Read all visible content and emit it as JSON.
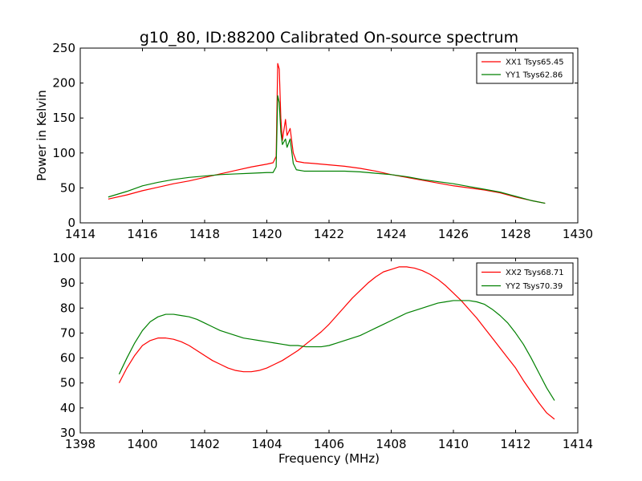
{
  "figure": {
    "title": "g10_80, ID:88200 Calibrated On-source spectrum"
  },
  "chart_data": [
    {
      "type": "line",
      "title": "g10_80, ID:88200 Calibrated On-source spectrum",
      "xlabel": "",
      "ylabel": "Power in Kelvin",
      "xlim": [
        1414,
        1430
      ],
      "ylim": [
        0,
        250
      ],
      "xticks": [
        1414,
        1416,
        1418,
        1420,
        1422,
        1424,
        1426,
        1428,
        1430
      ],
      "yticks": [
        0,
        50,
        100,
        150,
        200,
        250
      ],
      "grid": false,
      "legend_position": "top-right",
      "series": [
        {
          "name": "XX1 Tsys65.45",
          "color": "#ff0000",
          "points": [
            [
              1414.9,
              34
            ],
            [
              1415.5,
              40
            ],
            [
              1416,
              46
            ],
            [
              1416.5,
              51
            ],
            [
              1417,
              56
            ],
            [
              1417.5,
              60
            ],
            [
              1418,
              65
            ],
            [
              1418.5,
              70
            ],
            [
              1419,
              75
            ],
            [
              1419.5,
              80
            ],
            [
              1420,
              84
            ],
            [
              1420.2,
              86
            ],
            [
              1420.3,
              95
            ],
            [
              1420.35,
              228
            ],
            [
              1420.4,
              220
            ],
            [
              1420.45,
              150
            ],
            [
              1420.5,
              118
            ],
            [
              1420.6,
              148
            ],
            [
              1420.65,
              125
            ],
            [
              1420.75,
              135
            ],
            [
              1420.85,
              100
            ],
            [
              1420.95,
              88
            ],
            [
              1421.2,
              86
            ],
            [
              1421.5,
              85
            ],
            [
              1422,
              83
            ],
            [
              1422.5,
              81
            ],
            [
              1423,
              78
            ],
            [
              1423.5,
              74
            ],
            [
              1424,
              69
            ],
            [
              1424.5,
              65
            ],
            [
              1425,
              61
            ],
            [
              1425.5,
              57
            ],
            [
              1426,
              53
            ],
            [
              1426.5,
              50
            ],
            [
              1427,
              47
            ],
            [
              1427.5,
              43
            ],
            [
              1428,
              37
            ],
            [
              1428.5,
              32
            ],
            [
              1428.95,
              28
            ]
          ]
        },
        {
          "name": "YY1 Tsys62.86",
          "color": "#008000",
          "points": [
            [
              1414.9,
              37
            ],
            [
              1415.5,
              45
            ],
            [
              1416,
              53
            ],
            [
              1416.5,
              58
            ],
            [
              1417,
              62
            ],
            [
              1417.5,
              65
            ],
            [
              1418,
              67
            ],
            [
              1418.5,
              69
            ],
            [
              1419,
              70
            ],
            [
              1419.5,
              71
            ],
            [
              1420,
              72
            ],
            [
              1420.2,
              72
            ],
            [
              1420.3,
              80
            ],
            [
              1420.35,
              182
            ],
            [
              1420.4,
              172
            ],
            [
              1420.45,
              130
            ],
            [
              1420.5,
              112
            ],
            [
              1420.6,
              120
            ],
            [
              1420.65,
              108
            ],
            [
              1420.75,
              120
            ],
            [
              1420.85,
              85
            ],
            [
              1420.95,
              76
            ],
            [
              1421.2,
              74
            ],
            [
              1421.5,
              74
            ],
            [
              1422,
              74
            ],
            [
              1422.5,
              74
            ],
            [
              1423,
              73
            ],
            [
              1423.5,
              71
            ],
            [
              1424,
              69
            ],
            [
              1424.5,
              66
            ],
            [
              1425,
              62
            ],
            [
              1425.5,
              59
            ],
            [
              1426,
              56
            ],
            [
              1426.5,
              52
            ],
            [
              1427,
              48
            ],
            [
              1427.5,
              44
            ],
            [
              1428,
              38
            ],
            [
              1428.5,
              32
            ],
            [
              1428.95,
              28
            ]
          ]
        }
      ]
    },
    {
      "type": "line",
      "title": "",
      "xlabel": "Frequency (MHz)",
      "ylabel": "",
      "xlim": [
        1398,
        1414
      ],
      "ylim": [
        30,
        100
      ],
      "xticks": [
        1398,
        1400,
        1402,
        1404,
        1406,
        1408,
        1410,
        1412,
        1414
      ],
      "yticks": [
        30,
        40,
        50,
        60,
        70,
        80,
        90,
        100
      ],
      "grid": false,
      "legend_position": "top-right",
      "series": [
        {
          "name": "XX2 Tsys68.71",
          "color": "#ff0000",
          "points": [
            [
              1399.25,
              50
            ],
            [
              1399.5,
              56
            ],
            [
              1399.75,
              61
            ],
            [
              1400,
              65
            ],
            [
              1400.25,
              67
            ],
            [
              1400.5,
              68
            ],
            [
              1400.75,
              68
            ],
            [
              1401,
              67.5
            ],
            [
              1401.25,
              66.5
            ],
            [
              1401.5,
              65
            ],
            [
              1401.75,
              63
            ],
            [
              1402,
              61
            ],
            [
              1402.25,
              59
            ],
            [
              1402.5,
              57.5
            ],
            [
              1402.75,
              56
            ],
            [
              1403,
              55
            ],
            [
              1403.25,
              54.5
            ],
            [
              1403.5,
              54.5
            ],
            [
              1403.75,
              55
            ],
            [
              1404,
              56
            ],
            [
              1404.25,
              57.5
            ],
            [
              1404.5,
              59
            ],
            [
              1404.75,
              61
            ],
            [
              1405,
              63
            ],
            [
              1405.25,
              65.5
            ],
            [
              1405.5,
              68
            ],
            [
              1405.75,
              70.5
            ],
            [
              1406,
              73.5
            ],
            [
              1406.25,
              77
            ],
            [
              1406.5,
              80.5
            ],
            [
              1406.75,
              84
            ],
            [
              1407,
              87
            ],
            [
              1407.25,
              90
            ],
            [
              1407.5,
              92.5
            ],
            [
              1407.75,
              94.5
            ],
            [
              1408,
              95.5
            ],
            [
              1408.25,
              96.5
            ],
            [
              1408.5,
              96.5
            ],
            [
              1408.75,
              96
            ],
            [
              1409,
              95
            ],
            [
              1409.25,
              93.5
            ],
            [
              1409.5,
              91.5
            ],
            [
              1409.75,
              89
            ],
            [
              1410,
              86
            ],
            [
              1410.25,
              83
            ],
            [
              1410.5,
              79.5
            ],
            [
              1410.75,
              76
            ],
            [
              1411,
              72
            ],
            [
              1411.25,
              68
            ],
            [
              1411.5,
              64
            ],
            [
              1411.75,
              60
            ],
            [
              1412,
              56
            ],
            [
              1412.25,
              51
            ],
            [
              1412.5,
              46.5
            ],
            [
              1412.75,
              42
            ],
            [
              1413,
              38
            ],
            [
              1413.25,
              35.5
            ]
          ]
        },
        {
          "name": "YY2 Tsys70.39",
          "color": "#008000",
          "points": [
            [
              1399.25,
              53.5
            ],
            [
              1399.5,
              60
            ],
            [
              1399.75,
              66
            ],
            [
              1400,
              71
            ],
            [
              1400.25,
              74.5
            ],
            [
              1400.5,
              76.5
            ],
            [
              1400.75,
              77.5
            ],
            [
              1401,
              77.5
            ],
            [
              1401.25,
              77
            ],
            [
              1401.5,
              76.5
            ],
            [
              1401.75,
              75.5
            ],
            [
              1402,
              74
            ],
            [
              1402.25,
              72.5
            ],
            [
              1402.5,
              71
            ],
            [
              1402.75,
              70
            ],
            [
              1403,
              69
            ],
            [
              1403.25,
              68
            ],
            [
              1403.5,
              67.5
            ],
            [
              1403.75,
              67
            ],
            [
              1404,
              66.5
            ],
            [
              1404.25,
              66
            ],
            [
              1404.5,
              65.5
            ],
            [
              1404.75,
              65
            ],
            [
              1405,
              65
            ],
            [
              1405.25,
              64.5
            ],
            [
              1405.5,
              64.5
            ],
            [
              1405.75,
              64.5
            ],
            [
              1406,
              65
            ],
            [
              1406.25,
              66
            ],
            [
              1406.5,
              67
            ],
            [
              1406.75,
              68
            ],
            [
              1407,
              69
            ],
            [
              1407.25,
              70.5
            ],
            [
              1407.5,
              72
            ],
            [
              1407.75,
              73.5
            ],
            [
              1408,
              75
            ],
            [
              1408.25,
              76.5
            ],
            [
              1408.5,
              78
            ],
            [
              1408.75,
              79
            ],
            [
              1409,
              80
            ],
            [
              1409.25,
              81
            ],
            [
              1409.5,
              82
            ],
            [
              1409.75,
              82.5
            ],
            [
              1410,
              83
            ],
            [
              1410.25,
              83
            ],
            [
              1410.5,
              83
            ],
            [
              1410.75,
              82.5
            ],
            [
              1411,
              81.5
            ],
            [
              1411.25,
              79.5
            ],
            [
              1411.5,
              77
            ],
            [
              1411.75,
              74
            ],
            [
              1412,
              70
            ],
            [
              1412.25,
              65.5
            ],
            [
              1412.5,
              60
            ],
            [
              1412.75,
              54
            ],
            [
              1413,
              48
            ],
            [
              1413.25,
              43
            ]
          ]
        }
      ]
    }
  ]
}
